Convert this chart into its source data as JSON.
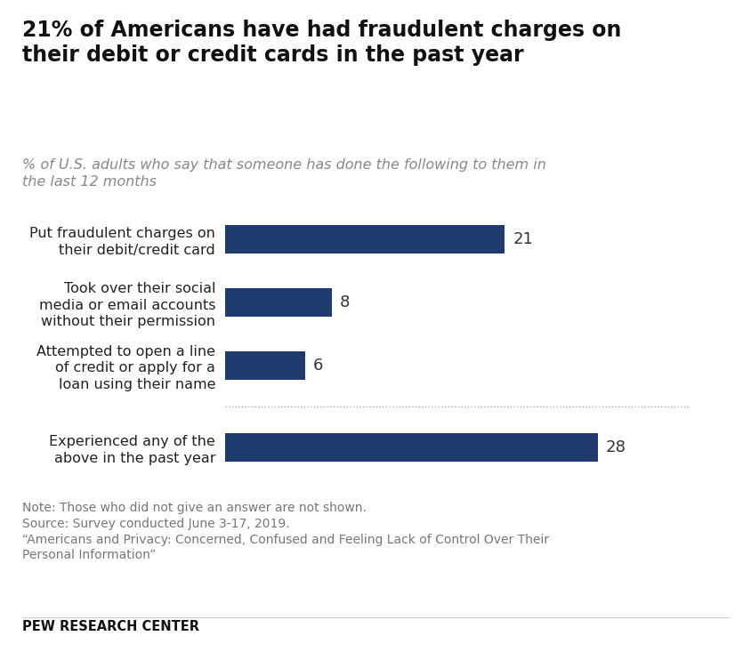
{
  "title": "21% of Americans have had fraudulent charges on\ntheir debit or credit cards in the past year",
  "subtitle": "% of U.S. adults who say that someone has done the following to them in\nthe last 12 months",
  "categories": [
    "Put fraudulent charges on\ntheir debit/credit card",
    "Took over their social\nmedia or email accounts\nwithout their permission",
    "Attempted to open a line\nof credit or apply for a\nloan using their name",
    "Experienced any of the\nabove in the past year"
  ],
  "values": [
    21,
    8,
    6,
    28
  ],
  "bar_color": "#1e3a6e",
  "value_labels": [
    "21",
    "8",
    "6",
    "28"
  ],
  "xlim": [
    0,
    35
  ],
  "note_lines": "Note: Those who did not give an answer are not shown.\nSource: Survey conducted June 3-17, 2019.\n“Americans and Privacy: Concerned, Confused and Feeling Lack of Control Over Their\nPersonal Information”",
  "footer": "PEW RESEARCH CENTER",
  "background_color": "#ffffff",
  "bar_height": 0.45,
  "title_fontsize": 17,
  "subtitle_fontsize": 11.5,
  "label_fontsize": 11.5,
  "value_fontsize": 13,
  "note_fontsize": 10,
  "footer_fontsize": 10.5
}
